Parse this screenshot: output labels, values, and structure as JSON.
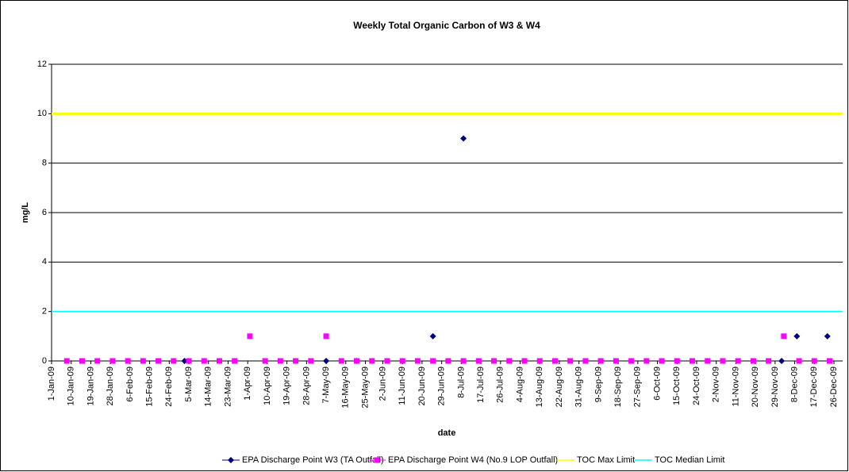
{
  "chart_data": {
    "type": "scatter",
    "title": "Weekly Total Organic Carbon of W3 & W4",
    "x_label": "date",
    "y_label": "mg/L",
    "xlim": [
      0,
      363
    ],
    "ylim": [
      0,
      12
    ],
    "yticks": [
      0,
      2,
      4,
      6,
      8,
      10,
      12
    ],
    "grid": true,
    "legend": "bottom",
    "xticks": [
      {
        "value": 0,
        "label": "1-Jan-09"
      },
      {
        "value": 9,
        "label": "10-Jan-09"
      },
      {
        "value": 18,
        "label": "19-Jan-09"
      },
      {
        "value": 27,
        "label": "28-Jan-09"
      },
      {
        "value": 36,
        "label": "6-Feb-09"
      },
      {
        "value": 45,
        "label": "15-Feb-09"
      },
      {
        "value": 54,
        "label": "24-Feb-09"
      },
      {
        "value": 63,
        "label": "5-Mar-09"
      },
      {
        "value": 72,
        "label": "14-Mar-09"
      },
      {
        "value": 81,
        "label": "23-Mar-09"
      },
      {
        "value": 90,
        "label": "1-Apr-09"
      },
      {
        "value": 99,
        "label": "10-Apr-09"
      },
      {
        "value": 108,
        "label": "19-Apr-09"
      },
      {
        "value": 117,
        "label": "28-Apr-09"
      },
      {
        "value": 126,
        "label": "7-May-09"
      },
      {
        "value": 135,
        "label": "16-May-09"
      },
      {
        "value": 144,
        "label": "25-May-09"
      },
      {
        "value": 152,
        "label": "2-Jun-09"
      },
      {
        "value": 161,
        "label": "11-Jun-09"
      },
      {
        "value": 170,
        "label": "20-Jun-09"
      },
      {
        "value": 179,
        "label": "29-Jun-09"
      },
      {
        "value": 188,
        "label": "8-Jul-09"
      },
      {
        "value": 197,
        "label": "17-Jul-09"
      },
      {
        "value": 206,
        "label": "26-Jul-09"
      },
      {
        "value": 215,
        "label": "4-Aug-09"
      },
      {
        "value": 224,
        "label": "13-Aug-09"
      },
      {
        "value": 233,
        "label": "22-Aug-09"
      },
      {
        "value": 242,
        "label": "31-Aug-09"
      },
      {
        "value": 251,
        "label": "9-Sep-09"
      },
      {
        "value": 260,
        "label": "18-Sep-09"
      },
      {
        "value": 269,
        "label": "27-Sep-09"
      },
      {
        "value": 278,
        "label": "6-Oct-09"
      },
      {
        "value": 287,
        "label": "15-Oct-09"
      },
      {
        "value": 296,
        "label": "24-Oct-09"
      },
      {
        "value": 305,
        "label": "2-Nov-09"
      },
      {
        "value": 314,
        "label": "11-Nov-09"
      },
      {
        "value": 323,
        "label": "20-Nov-09"
      },
      {
        "value": 332,
        "label": "29-Nov-09"
      },
      {
        "value": 341,
        "label": "8-Dec-09"
      },
      {
        "value": 350,
        "label": "17-Dec-09"
      },
      {
        "value": 359,
        "label": "26-Dec-09"
      }
    ],
    "series": [
      {
        "name": "EPA Discharge Point W3 (TA Outfall)",
        "color": "#000080",
        "marker": "diamond",
        "x": [
          61,
          126,
          140,
          175,
          189,
          335,
          342,
          356
        ],
        "values": [
          0,
          0,
          0,
          1,
          9,
          0,
          1,
          1
        ]
      },
      {
        "name": "EPA Discharge Point W4 (No.9 LOP Outfall)",
        "color": "#ff00ff",
        "marker": "square",
        "x": [
          7,
          14,
          21,
          28,
          35,
          42,
          49,
          56,
          63,
          70,
          77,
          84,
          91,
          98,
          105,
          112,
          119,
          126,
          133,
          140,
          147,
          154,
          161,
          168,
          175,
          182,
          189,
          196,
          203,
          210,
          217,
          224,
          231,
          238,
          245,
          252,
          259,
          266,
          273,
          280,
          287,
          294,
          301,
          308,
          315,
          322,
          329,
          336,
          343,
          350,
          357
        ],
        "values": [
          0,
          0,
          0,
          0,
          0,
          0,
          0,
          0,
          0,
          0,
          0,
          0,
          1,
          0,
          0,
          0,
          0,
          1,
          0,
          0,
          0,
          0,
          0,
          0,
          0,
          0,
          0,
          0,
          0,
          0,
          0,
          0,
          0,
          0,
          0,
          0,
          0,
          0,
          0,
          0,
          0,
          0,
          0,
          0,
          0,
          0,
          0,
          1,
          0,
          0,
          0
        ]
      },
      {
        "name": "TOC Max Limit",
        "color": "#ffff00",
        "marker": "hline",
        "value": 10
      },
      {
        "name": "TOC Median Limit",
        "color": "#00ffff",
        "marker": "hline",
        "value": 2
      }
    ]
  }
}
